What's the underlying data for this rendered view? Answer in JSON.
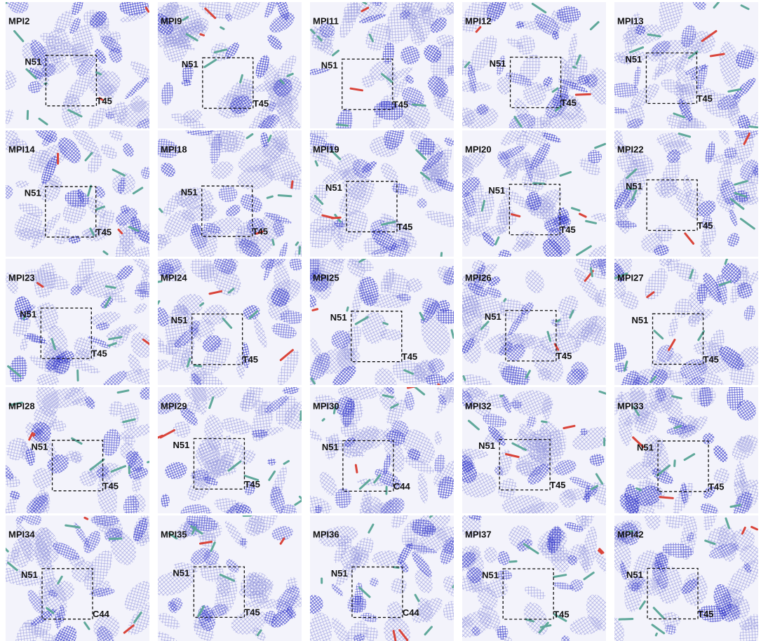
{
  "panels": [
    {
      "title": "MPI2",
      "labels": [
        "N51",
        "T45"
      ]
    },
    {
      "title": "MPI9",
      "labels": [
        "N51",
        "T45"
      ]
    },
    {
      "title": "MPI11",
      "labels": [
        "N51",
        "T45"
      ]
    },
    {
      "title": "MPI12",
      "labels": [
        "N51",
        "T45"
      ]
    },
    {
      "title": "MPI13",
      "labels": [
        "N51",
        "T45"
      ]
    },
    {
      "title": "MPI14",
      "labels": [
        "N51",
        "T45"
      ]
    },
    {
      "title": "MPI18",
      "labels": [
        "N51",
        "T45"
      ]
    },
    {
      "title": "MPI19",
      "labels": [
        "N51",
        "T45"
      ]
    },
    {
      "title": "MPI20",
      "labels": [
        "N51",
        "T45"
      ]
    },
    {
      "title": "MPI22",
      "labels": [
        "N51",
        "T45"
      ]
    },
    {
      "title": "MPI23",
      "labels": [
        "N51",
        "T45"
      ]
    },
    {
      "title": "MPI24",
      "labels": [
        "N51",
        "T45"
      ]
    },
    {
      "title": "MPI25",
      "labels": [
        "N51",
        "T45"
      ]
    },
    {
      "title": "MPI26",
      "labels": [
        "N51",
        "T45"
      ]
    },
    {
      "title": "MPI27",
      "labels": [
        "N51",
        "T45"
      ]
    },
    {
      "title": "MPI28",
      "labels": [
        "N51",
        "T45"
      ]
    },
    {
      "title": "MPI29",
      "labels": [
        "N51",
        "T45"
      ]
    },
    {
      "title": "MPI30",
      "labels": [
        "N51",
        "C44"
      ]
    },
    {
      "title": "MPI32",
      "labels": [
        "N51",
        "T45"
      ]
    },
    {
      "title": "MPI33",
      "labels": [
        "N51",
        "T45"
      ]
    },
    {
      "title": "MPI34",
      "labels": [
        "N51",
        "C44"
      ]
    },
    {
      "title": "MPI35",
      "labels": [
        "N51",
        "T45"
      ]
    },
    {
      "title": "MPI36",
      "labels": [
        "N51",
        "C44"
      ]
    },
    {
      "title": "MPI37",
      "labels": [
        "N51",
        "T45"
      ]
    },
    {
      "title": "MPI42",
      "labels": [
        "N51",
        "T45"
      ]
    }
  ]
}
